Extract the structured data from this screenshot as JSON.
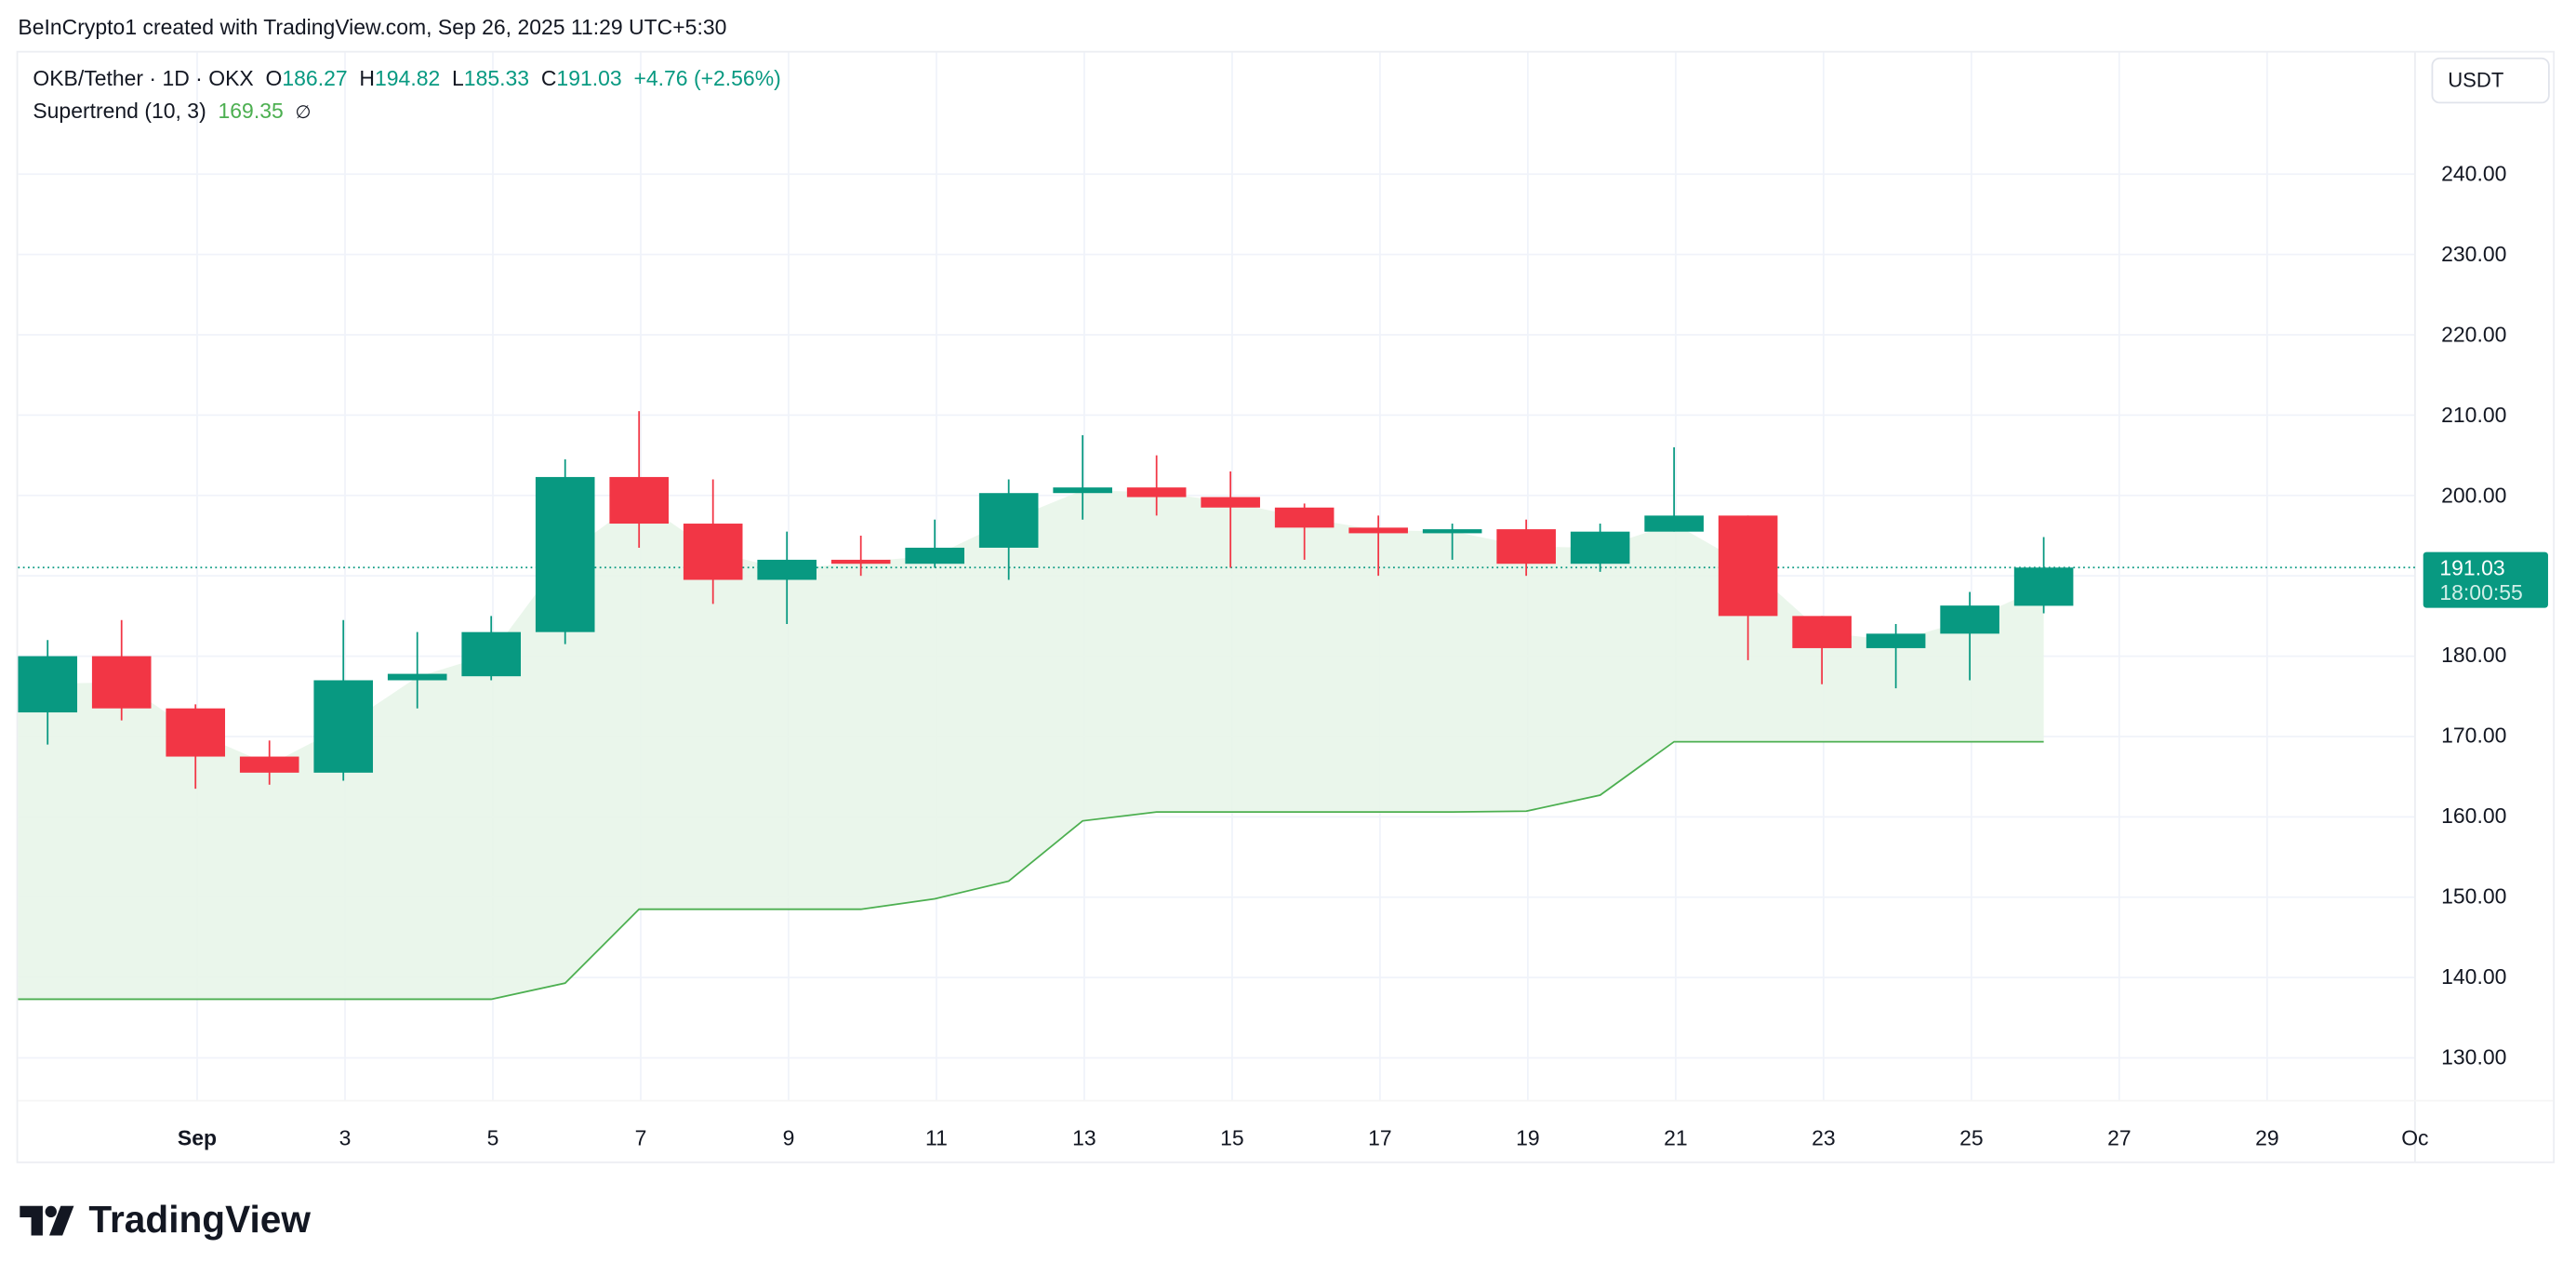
{
  "credit": "BeInCrypto1 created with TradingView.com, Sep 26, 2025 11:29 UTC+5:30",
  "legend": {
    "symbol": "OKB/Tether · 1D · OKX",
    "o_label": "O",
    "o": "186.27",
    "h_label": "H",
    "h": "194.82",
    "l_label": "L",
    "l": "185.33",
    "c_label": "C",
    "c": "191.03",
    "change": "+4.76 (+2.56%)",
    "indicator": "Supertrend (10, 3)",
    "indicator_value": "169.35",
    "indicator_icon": "∅"
  },
  "currency_button": "USDT",
  "last_price": {
    "price": "191.03",
    "countdown": "18:00:55"
  },
  "logo_text": "TradingView",
  "colors": {
    "up": "#089981",
    "down": "#f23645",
    "supertrend": "#4caf50",
    "fill": "#e8f5e9"
  },
  "chart_data": {
    "type": "candlestick",
    "ylim": [
      120,
      250
    ],
    "grid": true,
    "y_ticks": [
      "240.00",
      "230.00",
      "220.00",
      "210.00",
      "200.00",
      "180.00",
      "170.00",
      "160.00",
      "150.00",
      "140.00",
      "130.00"
    ],
    "x_ticks": [
      "Sep",
      "3",
      "5",
      "7",
      "9",
      "11",
      "13",
      "15",
      "17",
      "19",
      "21",
      "23",
      "25",
      "27",
      "29",
      "Oc"
    ],
    "dates": [
      "Aug 30",
      "Aug 31",
      "Sep 1",
      "Sep 2",
      "Sep 3",
      "Sep 4",
      "Sep 5",
      "Sep 6",
      "Sep 7",
      "Sep 8",
      "Sep 9",
      "Sep 10",
      "Sep 11",
      "Sep 12",
      "Sep 13",
      "Sep 14",
      "Sep 15",
      "Sep 16",
      "Sep 17",
      "Sep 18",
      "Sep 19",
      "Sep 20",
      "Sep 21",
      "Sep 22",
      "Sep 23",
      "Sep 24",
      "Sep 25",
      "Sep 26"
    ],
    "ohlc": [
      [
        173,
        182,
        169,
        180
      ],
      [
        180,
        184.5,
        172,
        173.5
      ],
      [
        173.5,
        174,
        163.5,
        167.5
      ],
      [
        167.5,
        169.5,
        164,
        165.5
      ],
      [
        165.5,
        184.5,
        164.5,
        177
      ],
      [
        177,
        183,
        173.5,
        177.8
      ],
      [
        177.5,
        185,
        177,
        183
      ],
      [
        183,
        204.5,
        181.5,
        202.3
      ],
      [
        202.3,
        210.5,
        193.5,
        196.5
      ],
      [
        196.5,
        202,
        186.5,
        189.5
      ],
      [
        189.5,
        195.5,
        184,
        192
      ],
      [
        192,
        195,
        190,
        191.5
      ],
      [
        191.5,
        197,
        191,
        193.5
      ],
      [
        193.5,
        202,
        189.5,
        200.3
      ],
      [
        200.3,
        207.5,
        197,
        201
      ],
      [
        201,
        205,
        197.5,
        199.8
      ],
      [
        199.8,
        203,
        191,
        198.5
      ],
      [
        198.5,
        199,
        192,
        196
      ],
      [
        196,
        197.5,
        190,
        195.3
      ],
      [
        195.3,
        196.5,
        192,
        195.8
      ],
      [
        195.8,
        197,
        190,
        191.5
      ],
      [
        191.5,
        196.5,
        190.5,
        195.5
      ],
      [
        195.5,
        206,
        195.5,
        197.5
      ],
      [
        197.5,
        197.5,
        179.5,
        185
      ],
      [
        185,
        185,
        176.5,
        181
      ],
      [
        181,
        184,
        176,
        182.8
      ],
      [
        182.8,
        188,
        177,
        186.3
      ],
      [
        186.27,
        194.82,
        185.33,
        191.03
      ]
    ],
    "supertrend": [
      137.3,
      137.3,
      137.3,
      137.3,
      137.3,
      137.3,
      137.3,
      139.3,
      148.5,
      148.5,
      148.5,
      148.5,
      149.8,
      152,
      159.5,
      160.6,
      160.6,
      160.6,
      160.6,
      160.6,
      160.7,
      162.7,
      169.35,
      169.35,
      169.35,
      169.35,
      169.35,
      169.35
    ]
  }
}
